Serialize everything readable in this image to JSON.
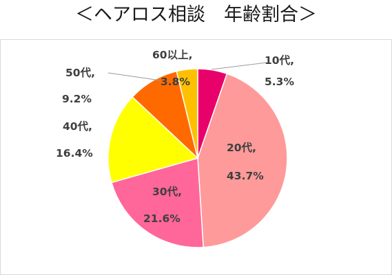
{
  "chart_data": {
    "type": "pie",
    "title": "＜ヘアロス相談　年齢割合＞",
    "slices": [
      {
        "name": "10代",
        "label": "10代,",
        "value": 5.3,
        "value_label": "5.3%",
        "color": "#e8006b"
      },
      {
        "name": "20代",
        "label": "20代,",
        "value": 43.7,
        "value_label": "43.7%",
        "color": "#ff9a9a"
      },
      {
        "name": "30代",
        "label": "30代,",
        "value": 21.6,
        "value_label": "21.6%",
        "color": "#ff6699"
      },
      {
        "name": "40代",
        "label": "40代,",
        "value": 16.4,
        "value_label": "16.4%",
        "color": "#ffff00"
      },
      {
        "name": "50代",
        "label": "50代,",
        "value": 9.2,
        "value_label": "9.2%",
        "color": "#ff6a00"
      },
      {
        "name": "60以上",
        "label": "60以上,",
        "value": 3.8,
        "value_label": "3.8%",
        "color": "#ffc000"
      }
    ],
    "start": "12 o'clock",
    "direction": "clockwise",
    "legend": "none"
  }
}
